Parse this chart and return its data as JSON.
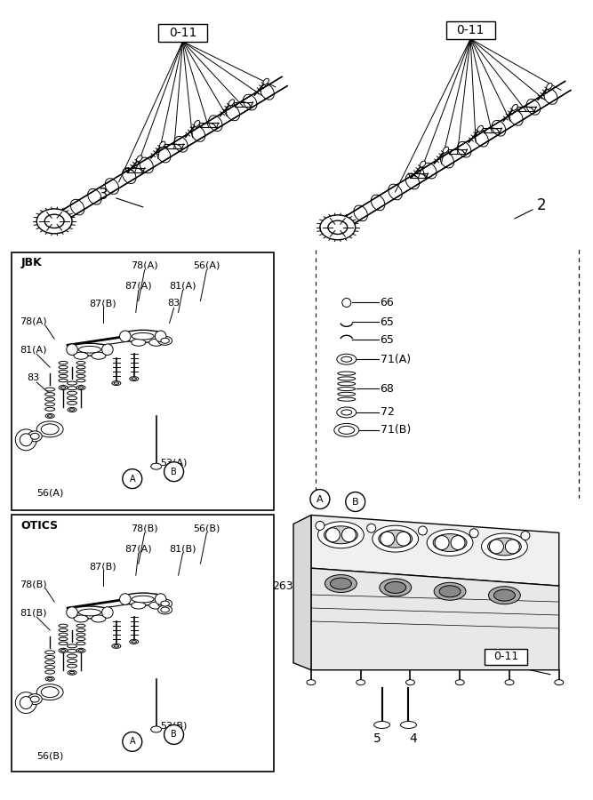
{
  "bg_color": "#ffffff",
  "line_color": "#000000",
  "fig_width": 6.67,
  "fig_height": 9.0,
  "label_0_11": "0-11",
  "label_3": "3",
  "label_2": "2",
  "label_jbk": "JBK",
  "label_otics": "OTICS",
  "label_263": "263",
  "label_5": "5",
  "label_4": "4",
  "label_66": "66",
  "label_65a": "65",
  "label_65b": "65",
  "label_71A": "71(A)",
  "label_68": "68",
  "label_72": "72",
  "label_71B": "71(B)",
  "jbk_labels": {
    "78A_top": "78(A)",
    "56A_top": "56(A)",
    "87A": "87(A)",
    "81A": "81(A)",
    "87B": "87(B)",
    "83": "83",
    "78A_left": "78(A)",
    "81A_left": "81(A)",
    "83_left": "83",
    "53A": "53(A)",
    "56A_bot": "56(A)"
  },
  "otics_labels": {
    "78B_top": "78(B)",
    "56B_top": "56(B)",
    "87A": "87(A)",
    "81B": "81(B)",
    "87B": "87(B)",
    "78B_left": "78(B)",
    "81B_left": "81(B)",
    "53B": "53(B)",
    "56B_bot": "56(B)"
  }
}
